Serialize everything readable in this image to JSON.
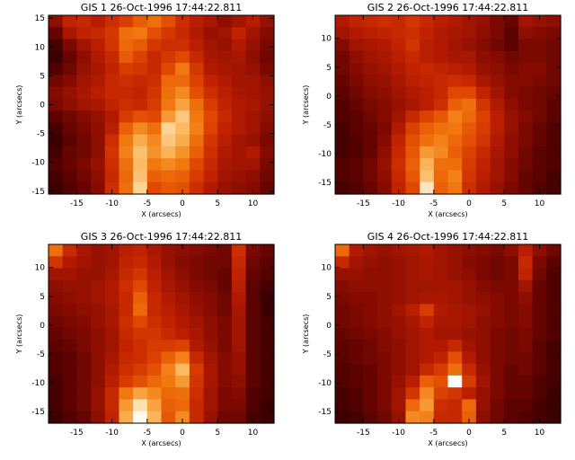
{
  "chart_data": [
    {
      "type": "heatmap",
      "title": "GIS 1 26-Oct-1996 17:44:22.811",
      "xlabel": "X (arcsecs)",
      "ylabel": "Y (arcsecs)",
      "xlim": [
        -19,
        13
      ],
      "ylim": [
        -15.5,
        15.5
      ],
      "xticks": [
        -15,
        -10,
        -5,
        0,
        5,
        10
      ],
      "yticks": [
        -15,
        -10,
        -5,
        0,
        5,
        10,
        15
      ],
      "colormap": [
        "#000000",
        "#4a0000",
        "#8a0c00",
        "#c02000",
        "#e04800",
        "#f27a10",
        "#fab050",
        "#fdd8a0",
        "#ffffff"
      ],
      "grid": false,
      "z_note": "rows listed top (y max) to bottom (y min); values 0-1 intensity",
      "z": [
        [
          0.26,
          0.38,
          0.4,
          0.35,
          0.42,
          0.47,
          0.55,
          0.6,
          0.52,
          0.42,
          0.36,
          0.32,
          0.26,
          0.3,
          0.35,
          0.28
        ],
        [
          0.18,
          0.32,
          0.38,
          0.4,
          0.45,
          0.6,
          0.62,
          0.52,
          0.45,
          0.4,
          0.34,
          0.28,
          0.3,
          0.38,
          0.3,
          0.24
        ],
        [
          0.12,
          0.22,
          0.3,
          0.36,
          0.44,
          0.58,
          0.55,
          0.45,
          0.42,
          0.42,
          0.36,
          0.3,
          0.28,
          0.34,
          0.28,
          0.22
        ],
        [
          0.1,
          0.18,
          0.26,
          0.34,
          0.4,
          0.55,
          0.48,
          0.4,
          0.45,
          0.5,
          0.4,
          0.32,
          0.3,
          0.32,
          0.26,
          0.2
        ],
        [
          0.14,
          0.2,
          0.28,
          0.32,
          0.38,
          0.46,
          0.44,
          0.4,
          0.5,
          0.62,
          0.45,
          0.34,
          0.32,
          0.3,
          0.28,
          0.22
        ],
        [
          0.2,
          0.24,
          0.3,
          0.34,
          0.4,
          0.42,
          0.4,
          0.42,
          0.58,
          0.58,
          0.48,
          0.38,
          0.34,
          0.3,
          0.3,
          0.26
        ],
        [
          0.24,
          0.28,
          0.32,
          0.36,
          0.4,
          0.4,
          0.38,
          0.44,
          0.6,
          0.66,
          0.52,
          0.42,
          0.36,
          0.32,
          0.3,
          0.28
        ],
        [
          0.22,
          0.26,
          0.3,
          0.32,
          0.38,
          0.42,
          0.4,
          0.46,
          0.62,
          0.72,
          0.6,
          0.46,
          0.38,
          0.34,
          0.32,
          0.28
        ],
        [
          0.16,
          0.2,
          0.24,
          0.28,
          0.34,
          0.46,
          0.52,
          0.5,
          0.7,
          0.82,
          0.62,
          0.5,
          0.4,
          0.34,
          0.3,
          0.26
        ],
        [
          0.12,
          0.18,
          0.22,
          0.26,
          0.36,
          0.56,
          0.66,
          0.6,
          0.86,
          0.78,
          0.64,
          0.48,
          0.38,
          0.34,
          0.3,
          0.24
        ],
        [
          0.1,
          0.16,
          0.2,
          0.26,
          0.42,
          0.62,
          0.74,
          0.66,
          0.82,
          0.74,
          0.6,
          0.44,
          0.36,
          0.3,
          0.28,
          0.22
        ],
        [
          0.12,
          0.18,
          0.2,
          0.26,
          0.44,
          0.64,
          0.8,
          0.68,
          0.76,
          0.68,
          0.56,
          0.42,
          0.34,
          0.3,
          0.34,
          0.24
        ],
        [
          0.14,
          0.18,
          0.22,
          0.28,
          0.42,
          0.6,
          0.78,
          0.62,
          0.66,
          0.62,
          0.5,
          0.4,
          0.32,
          0.3,
          0.3,
          0.22
        ],
        [
          0.12,
          0.16,
          0.2,
          0.26,
          0.4,
          0.58,
          0.8,
          0.56,
          0.58,
          0.56,
          0.46,
          0.38,
          0.3,
          0.28,
          0.26,
          0.2
        ],
        [
          0.1,
          0.14,
          0.18,
          0.24,
          0.42,
          0.6,
          0.86,
          0.5,
          0.54,
          0.52,
          0.42,
          0.34,
          0.28,
          0.26,
          0.24,
          0.18
        ]
      ]
    },
    {
      "type": "heatmap",
      "title": "GIS 2 26-Oct-1996 17:44:22.811",
      "xlabel": "X (arcsecs)",
      "ylabel": "Y (arcsecs)",
      "xlim": [
        -19,
        13
      ],
      "ylim": [
        -17,
        14
      ],
      "xticks": [
        -15,
        -10,
        -5,
        0,
        5,
        10
      ],
      "yticks": [
        -15,
        -10,
        -5,
        0,
        5,
        10
      ],
      "colormap": [
        "#000000",
        "#4a0000",
        "#8a0c00",
        "#c02000",
        "#e04800",
        "#f27a10",
        "#fab050",
        "#fdd8a0",
        "#ffffff"
      ],
      "grid": false,
      "z_note": "rows listed top (y max) to bottom (y min); values 0-1 intensity",
      "z": [
        [
          0.34,
          0.38,
          0.4,
          0.42,
          0.4,
          0.44,
          0.4,
          0.36,
          0.34,
          0.3,
          0.28,
          0.22,
          0.18,
          0.3,
          0.28,
          0.26
        ],
        [
          0.3,
          0.34,
          0.36,
          0.38,
          0.4,
          0.42,
          0.38,
          0.34,
          0.32,
          0.3,
          0.26,
          0.22,
          0.16,
          0.26,
          0.24,
          0.22
        ],
        [
          0.24,
          0.3,
          0.32,
          0.34,
          0.38,
          0.44,
          0.36,
          0.34,
          0.3,
          0.28,
          0.24,
          0.2,
          0.16,
          0.22,
          0.22,
          0.2
        ],
        [
          0.2,
          0.26,
          0.3,
          0.32,
          0.36,
          0.4,
          0.36,
          0.34,
          0.32,
          0.32,
          0.26,
          0.24,
          0.2,
          0.22,
          0.22,
          0.2
        ],
        [
          0.2,
          0.24,
          0.28,
          0.3,
          0.34,
          0.38,
          0.4,
          0.38,
          0.36,
          0.34,
          0.28,
          0.26,
          0.22,
          0.24,
          0.24,
          0.2
        ],
        [
          0.18,
          0.22,
          0.26,
          0.28,
          0.32,
          0.36,
          0.38,
          0.4,
          0.42,
          0.4,
          0.32,
          0.28,
          0.24,
          0.24,
          0.22,
          0.2
        ],
        [
          0.16,
          0.2,
          0.24,
          0.26,
          0.3,
          0.34,
          0.36,
          0.4,
          0.5,
          0.5,
          0.38,
          0.3,
          0.24,
          0.22,
          0.2,
          0.18
        ],
        [
          0.14,
          0.18,
          0.22,
          0.24,
          0.28,
          0.32,
          0.36,
          0.42,
          0.56,
          0.6,
          0.44,
          0.34,
          0.26,
          0.22,
          0.2,
          0.16
        ],
        [
          0.14,
          0.16,
          0.2,
          0.24,
          0.3,
          0.4,
          0.48,
          0.54,
          0.64,
          0.58,
          0.48,
          0.36,
          0.28,
          0.24,
          0.2,
          0.16
        ],
        [
          0.12,
          0.16,
          0.18,
          0.22,
          0.34,
          0.48,
          0.56,
          0.6,
          0.62,
          0.54,
          0.46,
          0.36,
          0.28,
          0.22,
          0.18,
          0.14
        ],
        [
          0.12,
          0.14,
          0.18,
          0.24,
          0.38,
          0.52,
          0.6,
          0.64,
          0.58,
          0.52,
          0.44,
          0.34,
          0.26,
          0.22,
          0.18,
          0.14
        ],
        [
          0.12,
          0.14,
          0.18,
          0.26,
          0.4,
          0.54,
          0.7,
          0.66,
          0.56,
          0.48,
          0.4,
          0.32,
          0.26,
          0.2,
          0.16,
          0.14
        ],
        [
          0.14,
          0.16,
          0.2,
          0.28,
          0.42,
          0.56,
          0.76,
          0.6,
          0.6,
          0.46,
          0.38,
          0.3,
          0.24,
          0.2,
          0.16,
          0.14
        ],
        [
          0.14,
          0.16,
          0.2,
          0.26,
          0.4,
          0.54,
          0.8,
          0.58,
          0.64,
          0.44,
          0.36,
          0.3,
          0.24,
          0.18,
          0.16,
          0.12
        ],
        [
          0.12,
          0.14,
          0.18,
          0.24,
          0.38,
          0.5,
          0.92,
          0.56,
          0.62,
          0.42,
          0.34,
          0.28,
          0.22,
          0.18,
          0.14,
          0.12
        ]
      ]
    },
    {
      "type": "heatmap",
      "title": "GIS 3 26-Oct-1996 17:44:22.811",
      "xlabel": "X (arcsecs)",
      "ylabel": "Y (arcsecs)",
      "xlim": [
        -19,
        13
      ],
      "ylim": [
        -17,
        14
      ],
      "xticks": [
        -15,
        -10,
        -5,
        0,
        5,
        10
      ],
      "yticks": [
        -15,
        -10,
        -5,
        0,
        5,
        10
      ],
      "colormap": [
        "#000000",
        "#4a0000",
        "#8a0c00",
        "#c02000",
        "#e04800",
        "#f27a10",
        "#fab050",
        "#fdd8a0",
        "#ffffff"
      ],
      "grid": false,
      "z_note": "rows listed top (y max) to bottom (y min); values 0-1 intensity",
      "z": [
        [
          0.6,
          0.4,
          0.32,
          0.28,
          0.3,
          0.36,
          0.38,
          0.32,
          0.28,
          0.26,
          0.24,
          0.22,
          0.2,
          0.42,
          0.22,
          0.18
        ],
        [
          0.44,
          0.34,
          0.3,
          0.28,
          0.3,
          0.38,
          0.4,
          0.34,
          0.28,
          0.24,
          0.22,
          0.2,
          0.2,
          0.4,
          0.2,
          0.16
        ],
        [
          0.3,
          0.3,
          0.28,
          0.28,
          0.32,
          0.4,
          0.44,
          0.36,
          0.3,
          0.26,
          0.22,
          0.2,
          0.18,
          0.38,
          0.18,
          0.14
        ],
        [
          0.26,
          0.28,
          0.28,
          0.3,
          0.34,
          0.42,
          0.5,
          0.38,
          0.32,
          0.28,
          0.24,
          0.22,
          0.18,
          0.36,
          0.16,
          0.12
        ],
        [
          0.24,
          0.26,
          0.28,
          0.3,
          0.34,
          0.4,
          0.56,
          0.4,
          0.34,
          0.3,
          0.26,
          0.24,
          0.2,
          0.34,
          0.16,
          0.1
        ],
        [
          0.22,
          0.24,
          0.26,
          0.28,
          0.32,
          0.4,
          0.58,
          0.4,
          0.36,
          0.32,
          0.28,
          0.24,
          0.2,
          0.32,
          0.16,
          0.1
        ],
        [
          0.2,
          0.22,
          0.24,
          0.28,
          0.32,
          0.42,
          0.5,
          0.42,
          0.38,
          0.34,
          0.3,
          0.26,
          0.22,
          0.3,
          0.16,
          0.12
        ],
        [
          0.18,
          0.2,
          0.22,
          0.26,
          0.3,
          0.4,
          0.44,
          0.44,
          0.4,
          0.36,
          0.32,
          0.26,
          0.22,
          0.3,
          0.16,
          0.12
        ],
        [
          0.16,
          0.18,
          0.22,
          0.26,
          0.3,
          0.38,
          0.42,
          0.46,
          0.46,
          0.48,
          0.34,
          0.28,
          0.22,
          0.3,
          0.16,
          0.12
        ],
        [
          0.14,
          0.16,
          0.2,
          0.26,
          0.32,
          0.4,
          0.42,
          0.48,
          0.56,
          0.64,
          0.4,
          0.3,
          0.24,
          0.28,
          0.16,
          0.12
        ],
        [
          0.14,
          0.16,
          0.2,
          0.26,
          0.34,
          0.42,
          0.46,
          0.52,
          0.64,
          0.78,
          0.46,
          0.32,
          0.24,
          0.28,
          0.16,
          0.12
        ],
        [
          0.12,
          0.16,
          0.2,
          0.26,
          0.36,
          0.46,
          0.52,
          0.58,
          0.62,
          0.7,
          0.44,
          0.32,
          0.24,
          0.26,
          0.16,
          0.12
        ],
        [
          0.12,
          0.16,
          0.2,
          0.28,
          0.4,
          0.62,
          0.72,
          0.66,
          0.58,
          0.6,
          0.42,
          0.3,
          0.22,
          0.24,
          0.14,
          0.12
        ],
        [
          0.12,
          0.16,
          0.2,
          0.28,
          0.4,
          0.7,
          0.9,
          0.72,
          0.56,
          0.58,
          0.4,
          0.3,
          0.22,
          0.22,
          0.14,
          0.1
        ],
        [
          0.1,
          0.14,
          0.18,
          0.26,
          0.38,
          0.74,
          0.98,
          0.76,
          0.54,
          0.66,
          0.4,
          0.28,
          0.2,
          0.2,
          0.12,
          0.1
        ]
      ]
    },
    {
      "type": "heatmap",
      "title": "GIS 4 26-Oct-1996 17:44:22.811",
      "xlabel": "X (arcsecs)",
      "ylabel": "Y (arcsecs)",
      "xlim": [
        -19,
        13
      ],
      "ylim": [
        -17,
        14
      ],
      "xticks": [
        -15,
        -10,
        -5,
        0,
        5,
        10
      ],
      "yticks": [
        -15,
        -10,
        -5,
        0,
        5,
        10
      ],
      "colormap": [
        "#000000",
        "#4a0000",
        "#8a0c00",
        "#c02000",
        "#e04800",
        "#f27a10",
        "#fab050",
        "#fdd8a0",
        "#ffffff"
      ],
      "grid": false,
      "z_note": "rows listed top (y max) to bottom (y min); values 0-1 intensity",
      "z": [
        [
          0.58,
          0.34,
          0.3,
          0.28,
          0.3,
          0.32,
          0.34,
          0.3,
          0.28,
          0.26,
          0.24,
          0.22,
          0.26,
          0.36,
          0.26,
          0.2
        ],
        [
          0.4,
          0.3,
          0.28,
          0.26,
          0.28,
          0.3,
          0.32,
          0.3,
          0.28,
          0.24,
          0.22,
          0.2,
          0.22,
          0.4,
          0.22,
          0.16
        ],
        [
          0.28,
          0.28,
          0.26,
          0.26,
          0.28,
          0.3,
          0.32,
          0.3,
          0.28,
          0.26,
          0.22,
          0.2,
          0.22,
          0.38,
          0.2,
          0.14
        ],
        [
          0.24,
          0.26,
          0.26,
          0.26,
          0.28,
          0.3,
          0.3,
          0.3,
          0.3,
          0.28,
          0.24,
          0.22,
          0.22,
          0.3,
          0.18,
          0.14
        ],
        [
          0.22,
          0.24,
          0.24,
          0.26,
          0.28,
          0.3,
          0.32,
          0.32,
          0.3,
          0.28,
          0.26,
          0.24,
          0.22,
          0.26,
          0.18,
          0.14
        ],
        [
          0.2,
          0.22,
          0.24,
          0.26,
          0.3,
          0.36,
          0.46,
          0.34,
          0.32,
          0.3,
          0.28,
          0.24,
          0.22,
          0.24,
          0.18,
          0.14
        ],
        [
          0.2,
          0.22,
          0.24,
          0.26,
          0.28,
          0.32,
          0.38,
          0.32,
          0.32,
          0.3,
          0.26,
          0.24,
          0.22,
          0.24,
          0.18,
          0.14
        ],
        [
          0.18,
          0.2,
          0.22,
          0.24,
          0.28,
          0.3,
          0.34,
          0.3,
          0.3,
          0.28,
          0.26,
          0.22,
          0.2,
          0.22,
          0.18,
          0.14
        ],
        [
          0.16,
          0.18,
          0.2,
          0.24,
          0.26,
          0.3,
          0.34,
          0.34,
          0.4,
          0.3,
          0.26,
          0.22,
          0.2,
          0.22,
          0.16,
          0.12
        ],
        [
          0.16,
          0.18,
          0.2,
          0.22,
          0.26,
          0.3,
          0.34,
          0.38,
          0.52,
          0.34,
          0.26,
          0.22,
          0.2,
          0.2,
          0.16,
          0.12
        ],
        [
          0.14,
          0.16,
          0.18,
          0.22,
          0.26,
          0.3,
          0.4,
          0.46,
          0.6,
          0.4,
          0.28,
          0.22,
          0.18,
          0.2,
          0.16,
          0.12
        ],
        [
          0.14,
          0.16,
          0.18,
          0.22,
          0.28,
          0.36,
          0.56,
          0.52,
          1.0,
          0.46,
          0.3,
          0.22,
          0.18,
          0.18,
          0.14,
          0.12
        ],
        [
          0.12,
          0.14,
          0.18,
          0.22,
          0.3,
          0.44,
          0.66,
          0.48,
          0.44,
          0.36,
          0.28,
          0.22,
          0.18,
          0.18,
          0.14,
          0.1
        ],
        [
          0.12,
          0.14,
          0.18,
          0.22,
          0.3,
          0.58,
          0.7,
          0.42,
          0.4,
          0.58,
          0.28,
          0.2,
          0.16,
          0.16,
          0.12,
          0.1
        ],
        [
          0.1,
          0.12,
          0.16,
          0.2,
          0.28,
          0.66,
          0.64,
          0.4,
          0.4,
          0.56,
          0.26,
          0.2,
          0.16,
          0.14,
          0.12,
          0.1
        ]
      ]
    }
  ]
}
